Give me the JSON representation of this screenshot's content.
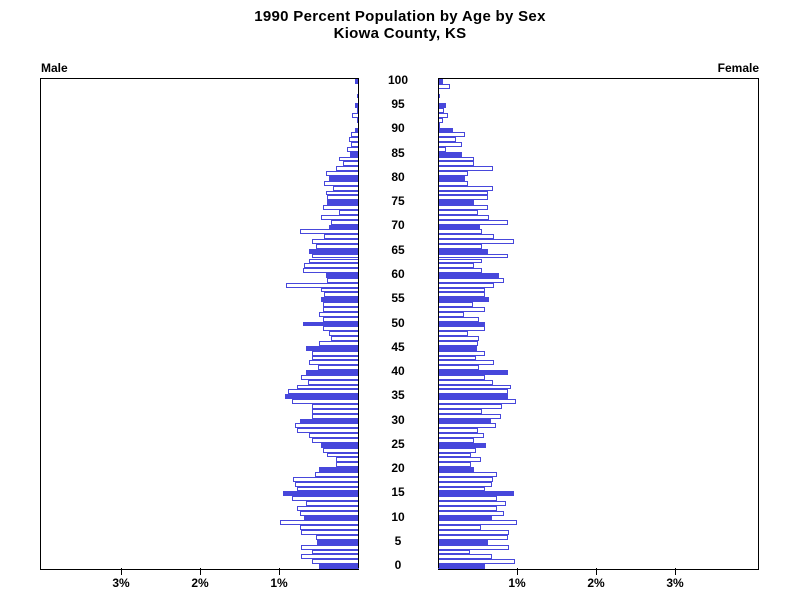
{
  "chart_data": {
    "type": "bar",
    "subtype": "population-pyramid",
    "title": "1990 Percent Population by Age by Sex",
    "subtitle": "Kiowa County, KS",
    "left_panel_label": "Male",
    "right_panel_label": "Female",
    "highlight_every": 5,
    "colors": {
      "bar_blue": "#4747DB",
      "bar_hollow_fill": "#FFFFFF",
      "axis": "#000000"
    },
    "x_axis": {
      "unit": "percent of population",
      "pct_ticks": [
        1,
        2,
        3
      ],
      "tick_labels": [
        "1%",
        "2%",
        "3%"
      ],
      "xmax_pct": 4,
      "grid": false
    },
    "y_axis": {
      "unit": "age in years",
      "age_min": 0,
      "age_max": 100,
      "age_tick_step": 5,
      "age_tick_labels": [
        "0",
        "5",
        "10",
        "15",
        "20",
        "25",
        "30",
        "35",
        "40",
        "45",
        "50",
        "55",
        "60",
        "65",
        "70",
        "75",
        "80",
        "85",
        "90",
        "95",
        "100"
      ]
    },
    "series": [
      {
        "name": "Male",
        "orientation": "left",
        "values_pct_by_age": [
          0.5,
          0.6,
          0.73,
          0.6,
          0.73,
          0.53,
          0.55,
          0.73,
          0.75,
          1.0,
          0.69,
          0.75,
          0.78,
          0.67,
          0.85,
          0.96,
          0.78,
          0.81,
          0.84,
          0.56,
          0.5,
          0.29,
          0.29,
          0.4,
          0.46,
          0.48,
          0.6,
          0.63,
          0.79,
          0.81,
          0.75,
          0.59,
          0.6,
          0.59,
          0.85,
          0.94,
          0.9,
          0.78,
          0.65,
          0.73,
          0.67,
          0.52,
          0.63,
          0.59,
          0.6,
          0.67,
          0.5,
          0.35,
          0.38,
          0.46,
          0.71,
          0.46,
          0.5,
          0.46,
          0.46,
          0.48,
          0.44,
          0.48,
          0.92,
          0.4,
          0.42,
          0.71,
          0.69,
          0.63,
          0.6,
          0.63,
          0.54,
          0.59,
          0.44,
          0.75,
          0.38,
          0.35,
          0.48,
          0.25,
          0.46,
          0.4,
          0.4,
          0.42,
          0.33,
          0.44,
          0.38,
          0.42,
          0.29,
          0.2,
          0.25,
          0.11,
          0.15,
          0.1,
          0.13,
          0.1,
          0.05,
          0.0,
          0.03,
          0.09,
          0.02,
          0.05,
          0.0,
          0.03,
          0.0,
          0.0,
          0.05
        ]
      },
      {
        "name": "Female",
        "orientation": "right",
        "values_pct_by_age": [
          0.6,
          0.98,
          0.68,
          0.4,
          0.9,
          0.63,
          0.89,
          0.9,
          0.55,
          1.0,
          0.68,
          0.83,
          0.75,
          0.86,
          0.75,
          0.96,
          0.6,
          0.68,
          0.69,
          0.75,
          0.46,
          0.42,
          0.55,
          0.42,
          0.48,
          0.61,
          0.46,
          0.58,
          0.5,
          0.74,
          0.67,
          0.8,
          0.56,
          0.81,
          0.99,
          0.89,
          0.88,
          0.93,
          0.7,
          0.6,
          0.89,
          0.52,
          0.71,
          0.48,
          0.6,
          0.49,
          0.5,
          0.52,
          0.38,
          0.6,
          0.6,
          0.52,
          0.33,
          0.6,
          0.44,
          0.64,
          0.6,
          0.6,
          0.71,
          0.84,
          0.77,
          0.56,
          0.46,
          0.56,
          0.88,
          0.63,
          0.56,
          0.96,
          0.71,
          0.56,
          0.53,
          0.88,
          0.64,
          0.5,
          0.63,
          0.45,
          0.63,
          0.63,
          0.69,
          0.38,
          0.34,
          0.38,
          0.69,
          0.46,
          0.46,
          0.31,
          0.1,
          0.31,
          0.23,
          0.34,
          0.19,
          0.03,
          0.06,
          0.13,
          0.08,
          0.1,
          0.0,
          0.03,
          0.0,
          0.15,
          0.06
        ]
      }
    ]
  }
}
